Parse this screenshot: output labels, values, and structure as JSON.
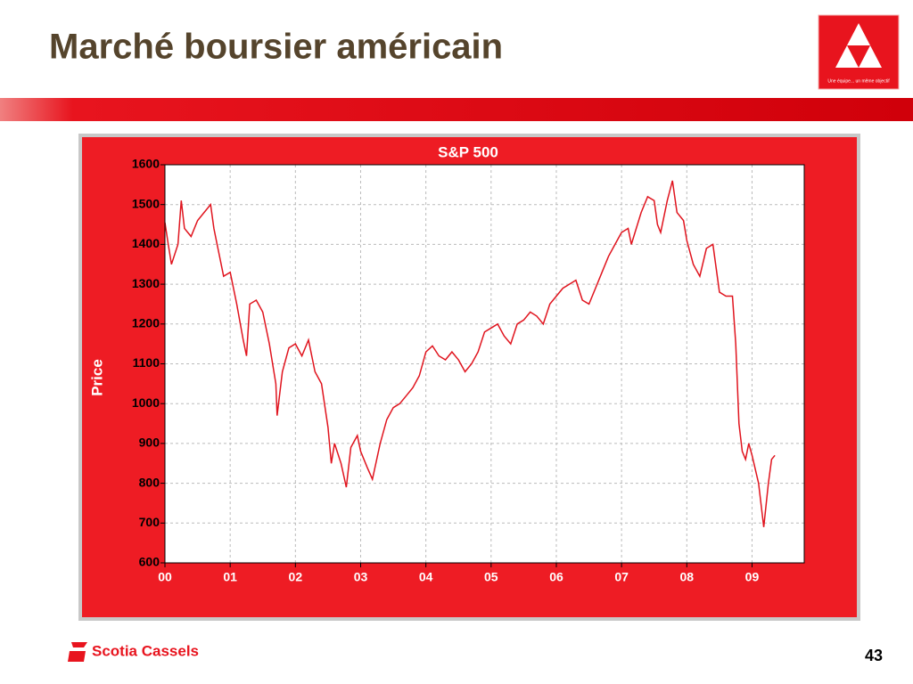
{
  "title": "Marché boursier américain",
  "logo_tagline": "Une équipe... un même objectif",
  "footer": "Scotia Cassels",
  "page_number": "43",
  "chart_data": {
    "type": "line",
    "title": "S&P 500",
    "y_label": "Price",
    "color": "#e0141e",
    "grid": true,
    "xlim": [
      2000,
      2009.8
    ],
    "ylim": [
      600,
      1600
    ],
    "yticks": [
      600,
      700,
      800,
      900,
      1000,
      1100,
      1200,
      1300,
      1400,
      1500,
      1600
    ],
    "xticks": [
      {
        "value": 2000,
        "label": "00"
      },
      {
        "value": 2001,
        "label": "01"
      },
      {
        "value": 2002,
        "label": "02"
      },
      {
        "value": 2003,
        "label": "03"
      },
      {
        "value": 2004,
        "label": "04"
      },
      {
        "value": 2005,
        "label": "05"
      },
      {
        "value": 2006,
        "label": "06"
      },
      {
        "value": 2007,
        "label": "07"
      },
      {
        "value": 2008,
        "label": "08"
      },
      {
        "value": 2009,
        "label": "09"
      }
    ],
    "x": [
      2000.0,
      2000.05,
      2000.1,
      2000.2,
      2000.25,
      2000.3,
      2000.4,
      2000.5,
      2000.6,
      2000.7,
      2000.75,
      2000.8,
      2000.9,
      2001.0,
      2001.1,
      2001.2,
      2001.25,
      2001.3,
      2001.4,
      2001.5,
      2001.6,
      2001.7,
      2001.72,
      2001.8,
      2001.9,
      2002.0,
      2002.1,
      2002.2,
      2002.3,
      2002.4,
      2002.5,
      2002.55,
      2002.6,
      2002.7,
      2002.78,
      2002.85,
      2002.95,
      2003.0,
      2003.1,
      2003.18,
      2003.3,
      2003.4,
      2003.5,
      2003.6,
      2003.7,
      2003.8,
      2003.9,
      2004.0,
      2004.1,
      2004.2,
      2004.3,
      2004.4,
      2004.5,
      2004.6,
      2004.7,
      2004.8,
      2004.9,
      2005.0,
      2005.1,
      2005.2,
      2005.3,
      2005.4,
      2005.5,
      2005.6,
      2005.7,
      2005.8,
      2005.9,
      2006.0,
      2006.1,
      2006.2,
      2006.3,
      2006.4,
      2006.5,
      2006.6,
      2006.7,
      2006.8,
      2006.9,
      2007.0,
      2007.1,
      2007.15,
      2007.3,
      2007.4,
      2007.5,
      2007.55,
      2007.6,
      2007.7,
      2007.78,
      2007.85,
      2007.95,
      2008.0,
      2008.1,
      2008.2,
      2008.3,
      2008.4,
      2008.5,
      2008.6,
      2008.7,
      2008.75,
      2008.8,
      2008.85,
      2008.9,
      2008.95,
      2009.0,
      2009.1,
      2009.18,
      2009.25,
      2009.3,
      2009.35
    ],
    "values": [
      1455,
      1400,
      1350,
      1400,
      1510,
      1440,
      1420,
      1460,
      1480,
      1500,
      1440,
      1400,
      1320,
      1330,
      1250,
      1160,
      1120,
      1250,
      1260,
      1230,
      1150,
      1050,
      970,
      1080,
      1140,
      1150,
      1120,
      1160,
      1080,
      1050,
      940,
      850,
      900,
      850,
      790,
      890,
      920,
      880,
      840,
      810,
      900,
      960,
      990,
      1000,
      1020,
      1040,
      1070,
      1130,
      1145,
      1120,
      1110,
      1130,
      1110,
      1080,
      1100,
      1130,
      1180,
      1190,
      1200,
      1170,
      1150,
      1200,
      1210,
      1230,
      1220,
      1200,
      1250,
      1270,
      1290,
      1300,
      1310,
      1260,
      1250,
      1290,
      1330,
      1370,
      1400,
      1430,
      1440,
      1400,
      1480,
      1520,
      1510,
      1450,
      1430,
      1510,
      1560,
      1480,
      1460,
      1410,
      1350,
      1320,
      1390,
      1400,
      1280,
      1270,
      1270,
      1150,
      950,
      880,
      860,
      900,
      870,
      800,
      690,
      800,
      860,
      870
    ]
  }
}
